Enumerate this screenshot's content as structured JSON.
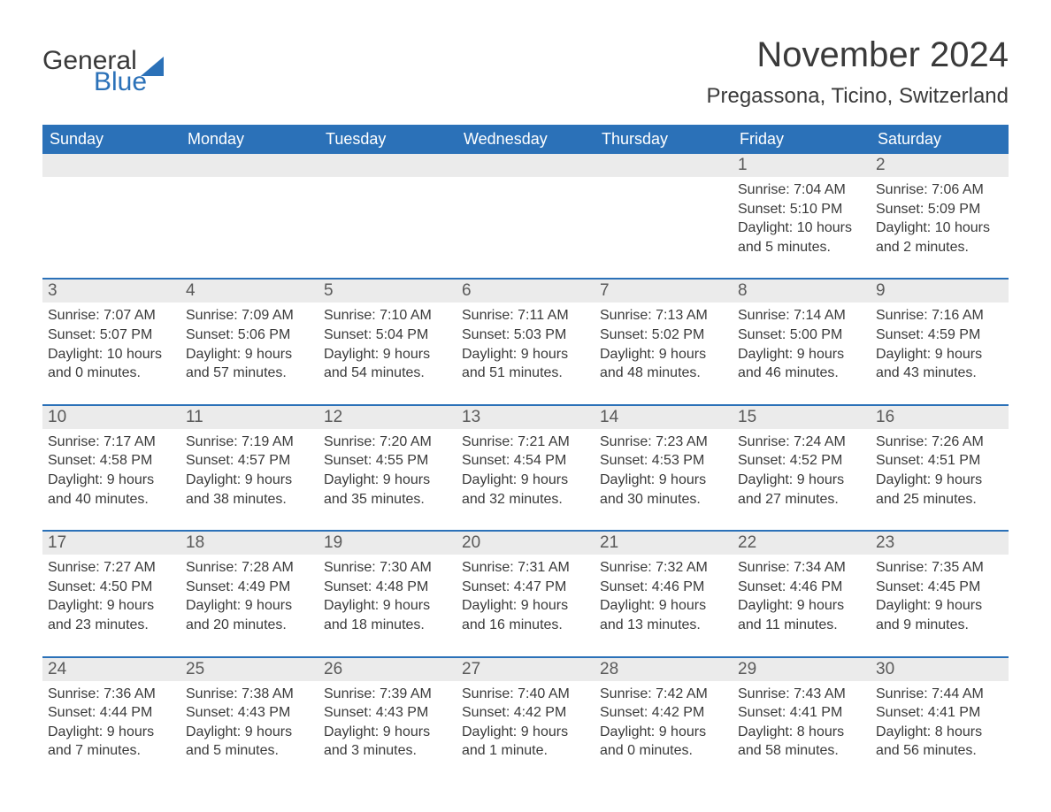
{
  "logo": {
    "text_general": "General",
    "text_blue": "Blue"
  },
  "title": "November 2024",
  "location": "Pregassona, Ticino, Switzerland",
  "colors": {
    "header_bg": "#2b71b8",
    "header_text": "#ffffff",
    "daynum_bg": "#ebebeb",
    "body_text": "#3a3a3a",
    "page_bg": "#ffffff"
  },
  "weekdays": [
    "Sunday",
    "Monday",
    "Tuesday",
    "Wednesday",
    "Thursday",
    "Friday",
    "Saturday"
  ],
  "weeks": [
    [
      null,
      null,
      null,
      null,
      null,
      {
        "n": "1",
        "sunrise": "7:04 AM",
        "sunset": "5:10 PM",
        "daylight": "10 hours and 5 minutes."
      },
      {
        "n": "2",
        "sunrise": "7:06 AM",
        "sunset": "5:09 PM",
        "daylight": "10 hours and 2 minutes."
      }
    ],
    [
      {
        "n": "3",
        "sunrise": "7:07 AM",
        "sunset": "5:07 PM",
        "daylight": "10 hours and 0 minutes."
      },
      {
        "n": "4",
        "sunrise": "7:09 AM",
        "sunset": "5:06 PM",
        "daylight": "9 hours and 57 minutes."
      },
      {
        "n": "5",
        "sunrise": "7:10 AM",
        "sunset": "5:04 PM",
        "daylight": "9 hours and 54 minutes."
      },
      {
        "n": "6",
        "sunrise": "7:11 AM",
        "sunset": "5:03 PM",
        "daylight": "9 hours and 51 minutes."
      },
      {
        "n": "7",
        "sunrise": "7:13 AM",
        "sunset": "5:02 PM",
        "daylight": "9 hours and 48 minutes."
      },
      {
        "n": "8",
        "sunrise": "7:14 AM",
        "sunset": "5:00 PM",
        "daylight": "9 hours and 46 minutes."
      },
      {
        "n": "9",
        "sunrise": "7:16 AM",
        "sunset": "4:59 PM",
        "daylight": "9 hours and 43 minutes."
      }
    ],
    [
      {
        "n": "10",
        "sunrise": "7:17 AM",
        "sunset": "4:58 PM",
        "daylight": "9 hours and 40 minutes."
      },
      {
        "n": "11",
        "sunrise": "7:19 AM",
        "sunset": "4:57 PM",
        "daylight": "9 hours and 38 minutes."
      },
      {
        "n": "12",
        "sunrise": "7:20 AM",
        "sunset": "4:55 PM",
        "daylight": "9 hours and 35 minutes."
      },
      {
        "n": "13",
        "sunrise": "7:21 AM",
        "sunset": "4:54 PM",
        "daylight": "9 hours and 32 minutes."
      },
      {
        "n": "14",
        "sunrise": "7:23 AM",
        "sunset": "4:53 PM",
        "daylight": "9 hours and 30 minutes."
      },
      {
        "n": "15",
        "sunrise": "7:24 AM",
        "sunset": "4:52 PM",
        "daylight": "9 hours and 27 minutes."
      },
      {
        "n": "16",
        "sunrise": "7:26 AM",
        "sunset": "4:51 PM",
        "daylight": "9 hours and 25 minutes."
      }
    ],
    [
      {
        "n": "17",
        "sunrise": "7:27 AM",
        "sunset": "4:50 PM",
        "daylight": "9 hours and 23 minutes."
      },
      {
        "n": "18",
        "sunrise": "7:28 AM",
        "sunset": "4:49 PM",
        "daylight": "9 hours and 20 minutes."
      },
      {
        "n": "19",
        "sunrise": "7:30 AM",
        "sunset": "4:48 PM",
        "daylight": "9 hours and 18 minutes."
      },
      {
        "n": "20",
        "sunrise": "7:31 AM",
        "sunset": "4:47 PM",
        "daylight": "9 hours and 16 minutes."
      },
      {
        "n": "21",
        "sunrise": "7:32 AM",
        "sunset": "4:46 PM",
        "daylight": "9 hours and 13 minutes."
      },
      {
        "n": "22",
        "sunrise": "7:34 AM",
        "sunset": "4:46 PM",
        "daylight": "9 hours and 11 minutes."
      },
      {
        "n": "23",
        "sunrise": "7:35 AM",
        "sunset": "4:45 PM",
        "daylight": "9 hours and 9 minutes."
      }
    ],
    [
      {
        "n": "24",
        "sunrise": "7:36 AM",
        "sunset": "4:44 PM",
        "daylight": "9 hours and 7 minutes."
      },
      {
        "n": "25",
        "sunrise": "7:38 AM",
        "sunset": "4:43 PM",
        "daylight": "9 hours and 5 minutes."
      },
      {
        "n": "26",
        "sunrise": "7:39 AM",
        "sunset": "4:43 PM",
        "daylight": "9 hours and 3 minutes."
      },
      {
        "n": "27",
        "sunrise": "7:40 AM",
        "sunset": "4:42 PM",
        "daylight": "9 hours and 1 minute."
      },
      {
        "n": "28",
        "sunrise": "7:42 AM",
        "sunset": "4:42 PM",
        "daylight": "9 hours and 0 minutes."
      },
      {
        "n": "29",
        "sunrise": "7:43 AM",
        "sunset": "4:41 PM",
        "daylight": "8 hours and 58 minutes."
      },
      {
        "n": "30",
        "sunrise": "7:44 AM",
        "sunset": "4:41 PM",
        "daylight": "8 hours and 56 minutes."
      }
    ]
  ],
  "labels": {
    "sunrise": "Sunrise: ",
    "sunset": "Sunset: ",
    "daylight": "Daylight: "
  }
}
